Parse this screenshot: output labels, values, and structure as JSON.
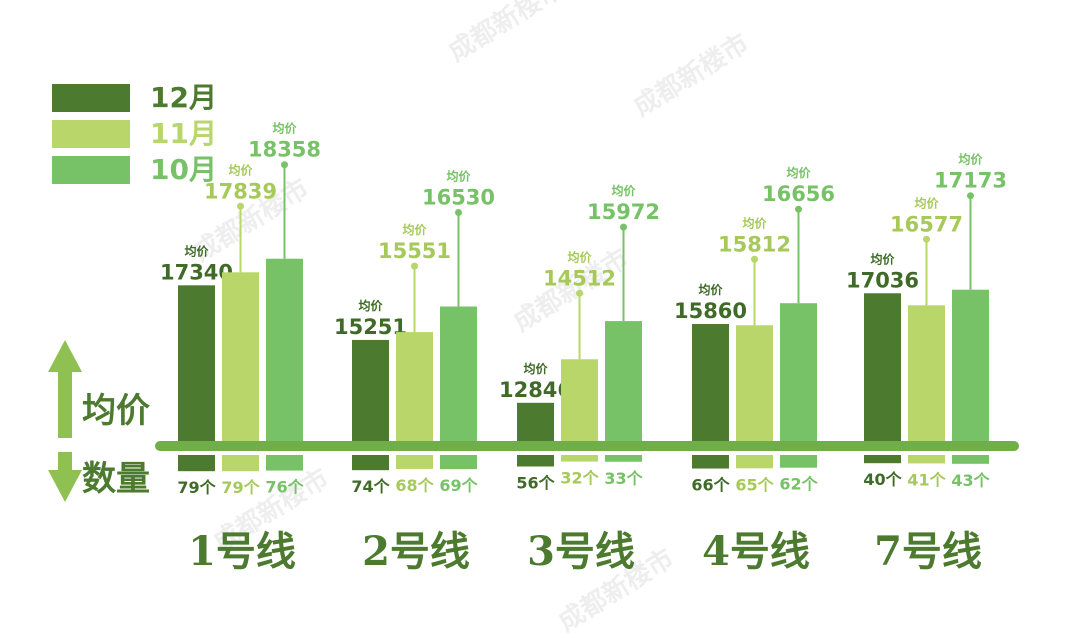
{
  "watermark": "成都新楼市",
  "legend": [
    {
      "label": "12月",
      "color": "#4c7a2f"
    },
    {
      "label": "11月",
      "color": "#b8d66a"
    },
    {
      "label": "10月",
      "color": "#77c267"
    }
  ],
  "axis": {
    "price_label": "均价",
    "count_label": "数量",
    "avg_tag": "均价",
    "count_suffix": "个"
  },
  "colors": {
    "baseline": "#6fae48",
    "arrow": "#8fc152",
    "axis_text": "#4c7a2f"
  },
  "chart_data": {
    "type": "bar",
    "categories": [
      "1号线",
      "2号线",
      "3号线",
      "4号线",
      "7号线"
    ],
    "series": [
      {
        "name": "12月",
        "price": [
          17340,
          15251,
          12846,
          15860,
          17036
        ],
        "count": [
          79,
          74,
          56,
          66,
          40
        ]
      },
      {
        "name": "11月",
        "price": [
          17839,
          15551,
          14512,
          15812,
          16577
        ],
        "count": [
          79,
          68,
          32,
          65,
          41
        ]
      },
      {
        "name": "10月",
        "price": [
          18358,
          16530,
          15972,
          16656,
          17173
        ],
        "count": [
          76,
          69,
          33,
          62,
          43
        ]
      }
    ]
  }
}
